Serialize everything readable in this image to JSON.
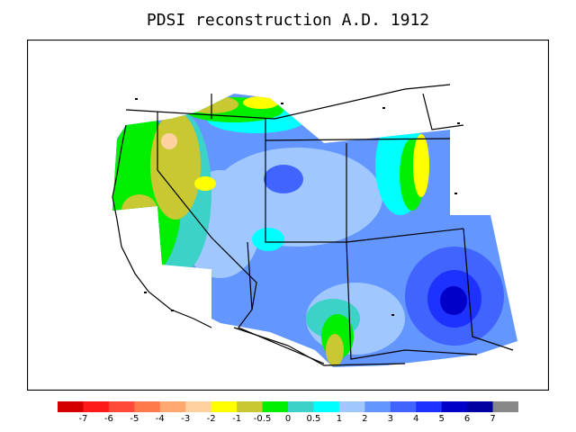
{
  "title": "PDSI reconstruction A.D. 1912",
  "legend": {
    "labels": [
      "-7",
      "-6",
      "-5",
      "-4",
      "-3",
      "-2",
      "-1",
      "-0.5",
      "0",
      "0.5",
      "1",
      "2",
      "3",
      "4",
      "5",
      "6",
      "7"
    ],
    "colors": [
      "#d40000",
      "#ff1a1a",
      "#ff4a3a",
      "#ff7a4a",
      "#ffa870",
      "#ffd2a0",
      "#ffff00",
      "#c8c832",
      "#00ee00",
      "#3cd2c8",
      "#00ffff",
      "#a0c8ff",
      "#6496ff",
      "#4164ff",
      "#1e32ff",
      "#0000c8",
      "#0000a0",
      "#888888"
    ]
  },
  "colors": {
    "base_blue": "#6496ff",
    "light_blue": "#a0c8ff",
    "mid_blue": "#4164ff",
    "deep_blue": "#1e32ff",
    "darkest_blue": "#0000c8",
    "cyan": "#00ffff",
    "teal": "#3cd2c8",
    "green": "#00ee00",
    "olive": "#c8c832",
    "yellow": "#ffff00",
    "peach": "#ffd2a0"
  }
}
